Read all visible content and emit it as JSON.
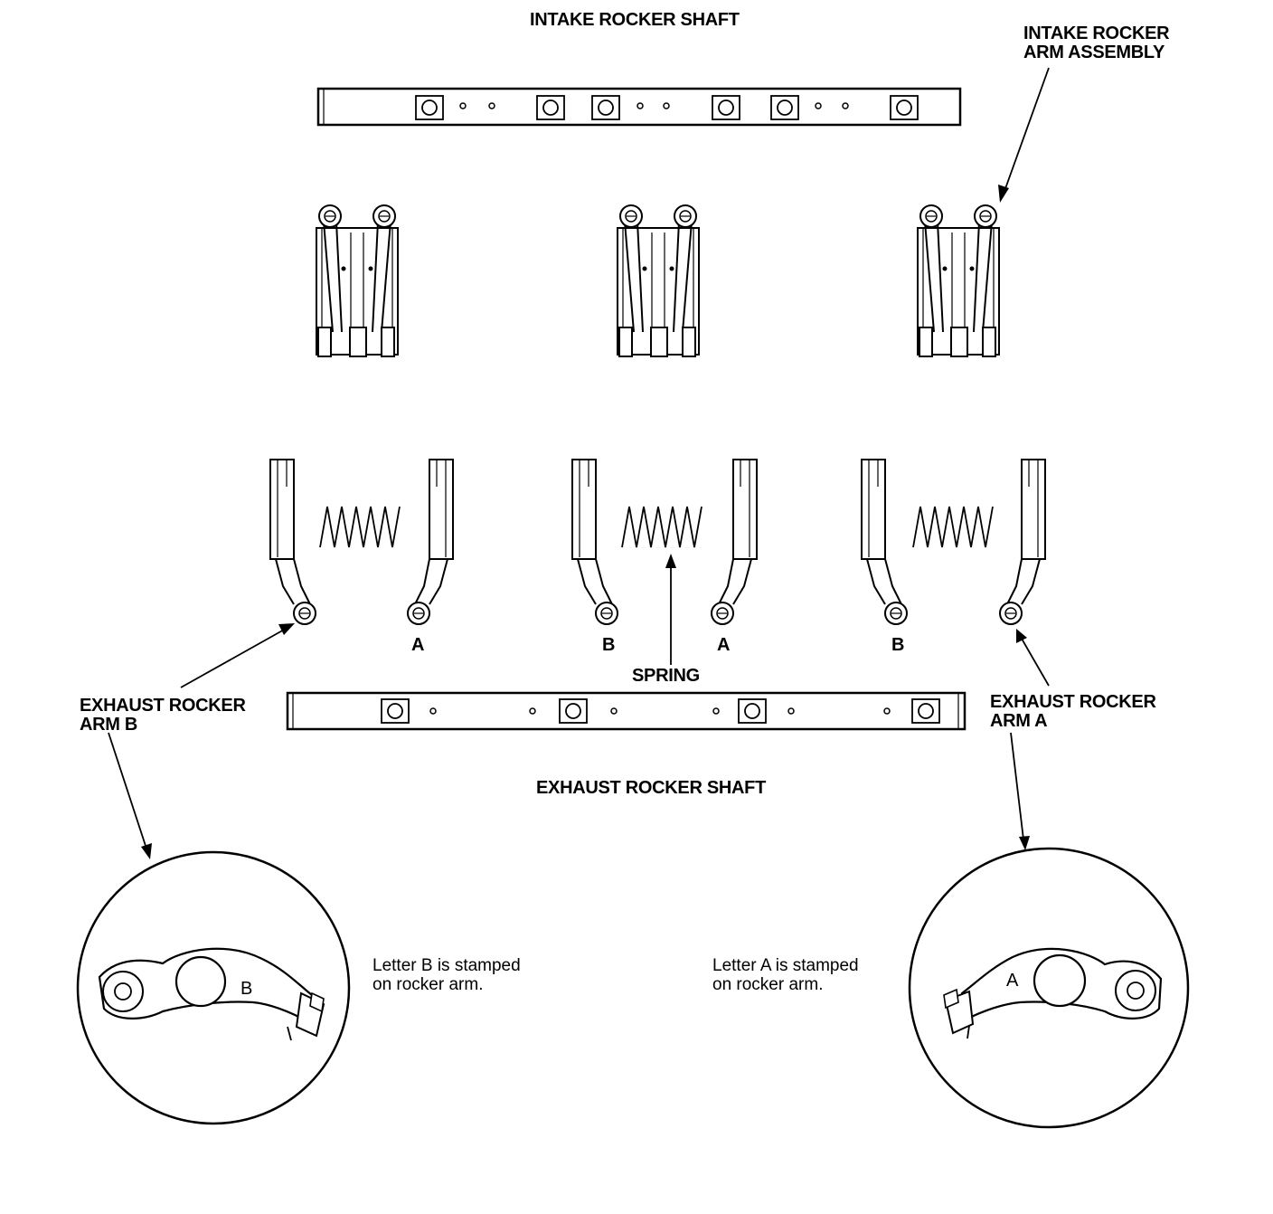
{
  "labels": {
    "intake_shaft": "INTAKE ROCKER SHAFT",
    "intake_assembly": [
      "INTAKE ROCKER",
      "ARM ASSEMBLY"
    ],
    "exhaust_b": [
      "EXHAUST ROCKER",
      "ARM B"
    ],
    "exhaust_a": [
      "EXHAUST ROCKER",
      "ARM A"
    ],
    "spring": "SPRING",
    "exhaust_shaft": "EXHAUST ROCKER SHAFT",
    "letters": [
      "A",
      "B",
      "A",
      "B"
    ],
    "inset_letter_b": "B",
    "inset_letter_a": "A"
  },
  "notes": {
    "letter_b": [
      "Letter B is stamped",
      "on rocker arm."
    ],
    "letter_a": [
      "Letter A is stamped",
      "on rocker arm."
    ]
  }
}
